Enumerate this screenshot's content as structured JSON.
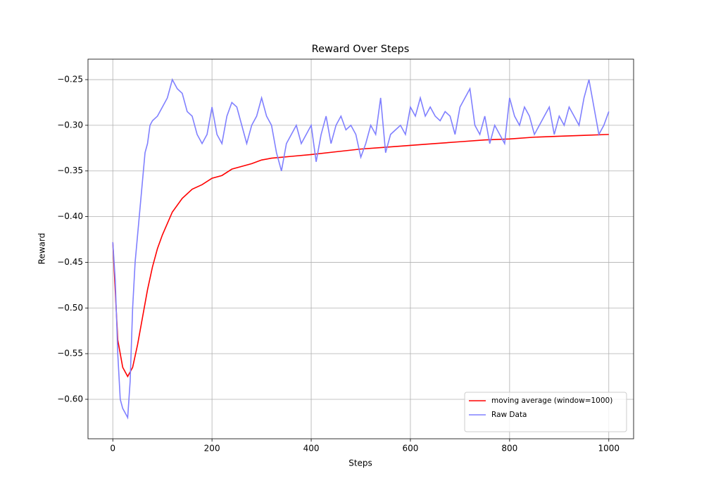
{
  "chart_data": {
    "type": "line",
    "title": "Reward Over Steps",
    "x_label": "Steps",
    "y_label": "Reward",
    "xlim": [
      -50,
      1050
    ],
    "ylim": [
      -0.6432,
      -0.2276
    ],
    "xticks": [
      0,
      200,
      400,
      600,
      800,
      1000
    ],
    "yticks": [
      {
        "value": -0.6,
        "label": "−0.60"
      },
      {
        "value": -0.55,
        "label": "−0.55"
      },
      {
        "value": -0.5,
        "label": "−0.50"
      },
      {
        "value": -0.45,
        "label": "−0.45"
      },
      {
        "value": -0.4,
        "label": "−0.40"
      },
      {
        "value": -0.35,
        "label": "−0.35"
      },
      {
        "value": -0.3,
        "label": "−0.30"
      },
      {
        "value": -0.25,
        "label": "−0.25"
      }
    ],
    "grid": true,
    "legend": "lower right",
    "series": [
      {
        "name": "moving average (window=1000)",
        "color": "#ff0000",
        "x": [
          0,
          10,
          20,
          30,
          40,
          50,
          60,
          70,
          80,
          90,
          100,
          120,
          140,
          160,
          180,
          200,
          220,
          240,
          260,
          280,
          300,
          320,
          340,
          360,
          400,
          450,
          500,
          550,
          600,
          650,
          700,
          750,
          800,
          850,
          900,
          950,
          1000
        ],
        "values": [
          -0.428,
          -0.535,
          -0.565,
          -0.575,
          -0.565,
          -0.54,
          -0.51,
          -0.48,
          -0.455,
          -0.435,
          -0.42,
          -0.395,
          -0.38,
          -0.37,
          -0.365,
          -0.358,
          -0.355,
          -0.348,
          -0.345,
          -0.342,
          -0.338,
          -0.336,
          -0.335,
          -0.334,
          -0.332,
          -0.329,
          -0.326,
          -0.324,
          -0.322,
          -0.32,
          -0.318,
          -0.316,
          -0.315,
          -0.313,
          -0.312,
          -0.311,
          -0.31
        ]
      },
      {
        "name": "Raw Data",
        "color": "#8080ff",
        "x": [
          0,
          5,
          10,
          15,
          20,
          25,
          30,
          35,
          40,
          45,
          50,
          55,
          60,
          65,
          70,
          75,
          80,
          90,
          100,
          110,
          120,
          130,
          140,
          150,
          160,
          170,
          180,
          190,
          200,
          210,
          220,
          230,
          240,
          250,
          260,
          270,
          280,
          290,
          300,
          310,
          320,
          330,
          340,
          350,
          360,
          370,
          380,
          390,
          400,
          410,
          420,
          430,
          440,
          450,
          460,
          470,
          480,
          490,
          500,
          510,
          520,
          530,
          540,
          550,
          560,
          570,
          580,
          590,
          600,
          610,
          620,
          630,
          640,
          650,
          660,
          670,
          680,
          690,
          700,
          710,
          720,
          730,
          740,
          750,
          760,
          770,
          780,
          790,
          800,
          810,
          820,
          830,
          840,
          850,
          860,
          870,
          880,
          890,
          900,
          910,
          920,
          930,
          940,
          950,
          960,
          970,
          980,
          990,
          1000
        ],
        "values": [
          -0.428,
          -0.47,
          -0.55,
          -0.6,
          -0.61,
          -0.615,
          -0.62,
          -0.58,
          -0.5,
          -0.45,
          -0.42,
          -0.39,
          -0.36,
          -0.33,
          -0.32,
          -0.3,
          -0.295,
          -0.29,
          -0.28,
          -0.27,
          -0.25,
          -0.26,
          -0.265,
          -0.285,
          -0.29,
          -0.31,
          -0.32,
          -0.31,
          -0.28,
          -0.31,
          -0.32,
          -0.29,
          -0.275,
          -0.28,
          -0.3,
          -0.32,
          -0.3,
          -0.29,
          -0.27,
          -0.29,
          -0.3,
          -0.33,
          -0.35,
          -0.32,
          -0.31,
          -0.3,
          -0.32,
          -0.31,
          -0.3,
          -0.34,
          -0.31,
          -0.29,
          -0.32,
          -0.3,
          -0.29,
          -0.305,
          -0.3,
          -0.31,
          -0.335,
          -0.32,
          -0.3,
          -0.31,
          -0.27,
          -0.33,
          -0.31,
          -0.305,
          -0.3,
          -0.31,
          -0.28,
          -0.29,
          -0.27,
          -0.29,
          -0.28,
          -0.29,
          -0.295,
          -0.285,
          -0.29,
          -0.31,
          -0.28,
          -0.27,
          -0.26,
          -0.3,
          -0.31,
          -0.29,
          -0.32,
          -0.3,
          -0.31,
          -0.32,
          -0.27,
          -0.29,
          -0.3,
          -0.28,
          -0.29,
          -0.31,
          -0.3,
          -0.29,
          -0.28,
          -0.31,
          -0.29,
          -0.3,
          -0.28,
          -0.29,
          -0.3,
          -0.27,
          -0.25,
          -0.28,
          -0.31,
          -0.3,
          -0.285
        ]
      }
    ]
  }
}
